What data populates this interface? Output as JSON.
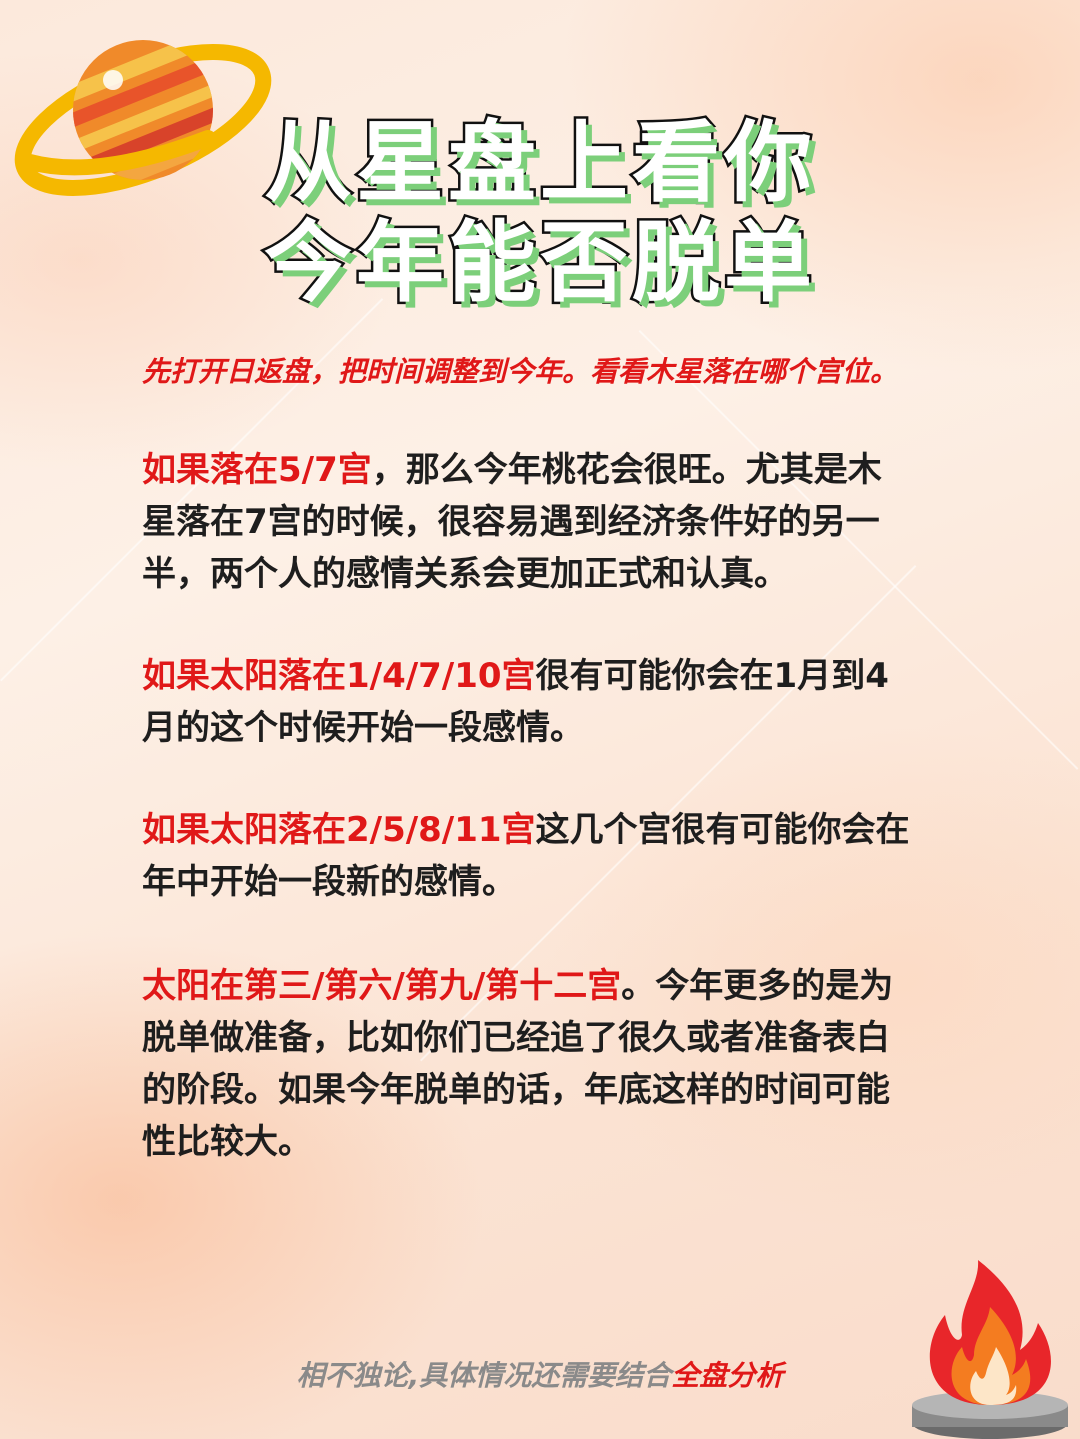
{
  "title": {
    "line1": "从星盘上看你",
    "line2": "今年能否脱单"
  },
  "intro": "先打开日返盘，把时间调整到今年。看看木星落在哪个宫位。",
  "paragraphs": [
    {
      "highlight": "如果落在5/7宫",
      "text": "，那么今年桃花会很旺。尤其是木星落在7宫的时候，很容易遇到经济条件好的另一半，两个人的感情关系会更加正式和认真。"
    },
    {
      "highlight": "如果太阳落在1/4/7/10宫",
      "text": "很有可能你会在1月到4月的这个时候开始一段感情。"
    },
    {
      "highlight": "如果太阳落在2/5/8/11宫",
      "text": "这几个宫很有可能你会在年中开始一段新的感情。"
    },
    {
      "highlight": "太阳在第三/第六/第九/第十二宫",
      "text": "。今年更多的是为脱单做准备，比如你们已经追了很久或者准备表白的阶段。如果今年脱单的话，年底这样的时间可能性比较大。"
    }
  ],
  "footer": {
    "text": "相不独论,具体情况还需要结合",
    "highlight": "全盘分析"
  },
  "colors": {
    "accent_red": "#e01818",
    "title_shadow": "#7ccf7a",
    "body_text": "#1e1e1e",
    "footer_gray": "#8a8a8a"
  },
  "icons": [
    "planet-icon",
    "fire-icon"
  ]
}
